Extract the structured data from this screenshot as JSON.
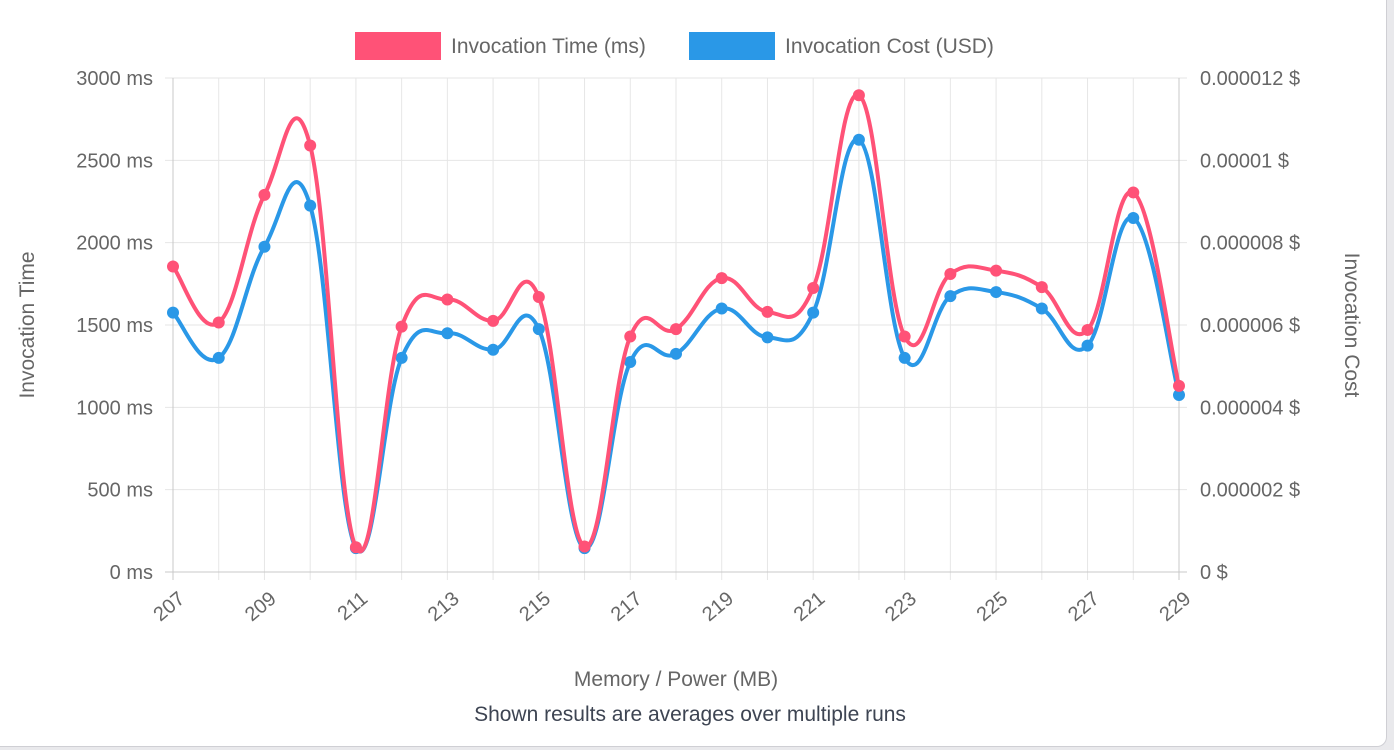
{
  "chart_data": {
    "type": "line",
    "x": [
      207,
      208,
      209,
      210,
      211,
      212,
      213,
      214,
      215,
      216,
      217,
      218,
      219,
      220,
      221,
      222,
      223,
      224,
      225,
      226,
      227,
      228,
      229
    ],
    "x_tick_labels": [
      "207",
      "209",
      "211",
      "213",
      "215",
      "217",
      "219",
      "221",
      "223",
      "225",
      "227",
      "229"
    ],
    "xlabel": "Memory / Power (MB)",
    "series": [
      {
        "name": "Invocation Time (ms)",
        "axis": "left",
        "color": "#ff5277",
        "values": [
          1855,
          1515,
          2290,
          2590,
          150,
          1490,
          1655,
          1525,
          1670,
          155,
          1430,
          1475,
          1785,
          1580,
          1725,
          2895,
          1430,
          1810,
          1830,
          1730,
          1470,
          2305,
          1130
        ]
      },
      {
        "name": "Invocation Cost (USD)",
        "axis": "right",
        "color": "#2a98e7",
        "values": [
          6.3e-06,
          5.2e-06,
          7.9e-06,
          8.9e-06,
          5.8e-07,
          5.2e-06,
          5.8e-06,
          5.4e-06,
          5.9e-06,
          5.8e-07,
          5.1e-06,
          5.3e-06,
          6.4e-06,
          5.7e-06,
          6.3e-06,
          1.05e-05,
          5.2e-06,
          6.7e-06,
          6.8e-06,
          6.4e-06,
          5.5e-06,
          8.6e-06,
          4.3e-06
        ]
      }
    ],
    "y_left": {
      "label": "Invocation Time",
      "ylim": [
        0,
        3000
      ],
      "ticks": [
        0,
        500,
        1000,
        1500,
        2000,
        2500,
        3000
      ],
      "tick_labels": [
        "0 ms",
        "500 ms",
        "1000 ms",
        "1500 ms",
        "2000 ms",
        "2500 ms",
        "3000 ms"
      ]
    },
    "y_right": {
      "label": "Invocation Cost",
      "ylim": [
        0,
        1.2e-05
      ],
      "ticks": [
        0,
        2e-06,
        4e-06,
        6e-06,
        8e-06,
        1e-05,
        1.2e-05
      ],
      "tick_labels": [
        "0 $",
        "0.000002 $",
        "0.000004 $",
        "0.000006 $",
        "0.000008 $",
        "0.00001 $",
        "0.000012 $"
      ]
    },
    "grid": true,
    "legend_position": "top"
  },
  "caption": "Shown results are averages over multiple runs",
  "colors": {
    "grid": "#e6e6e6",
    "axis": "#c8c8c8",
    "text": "#666666"
  }
}
